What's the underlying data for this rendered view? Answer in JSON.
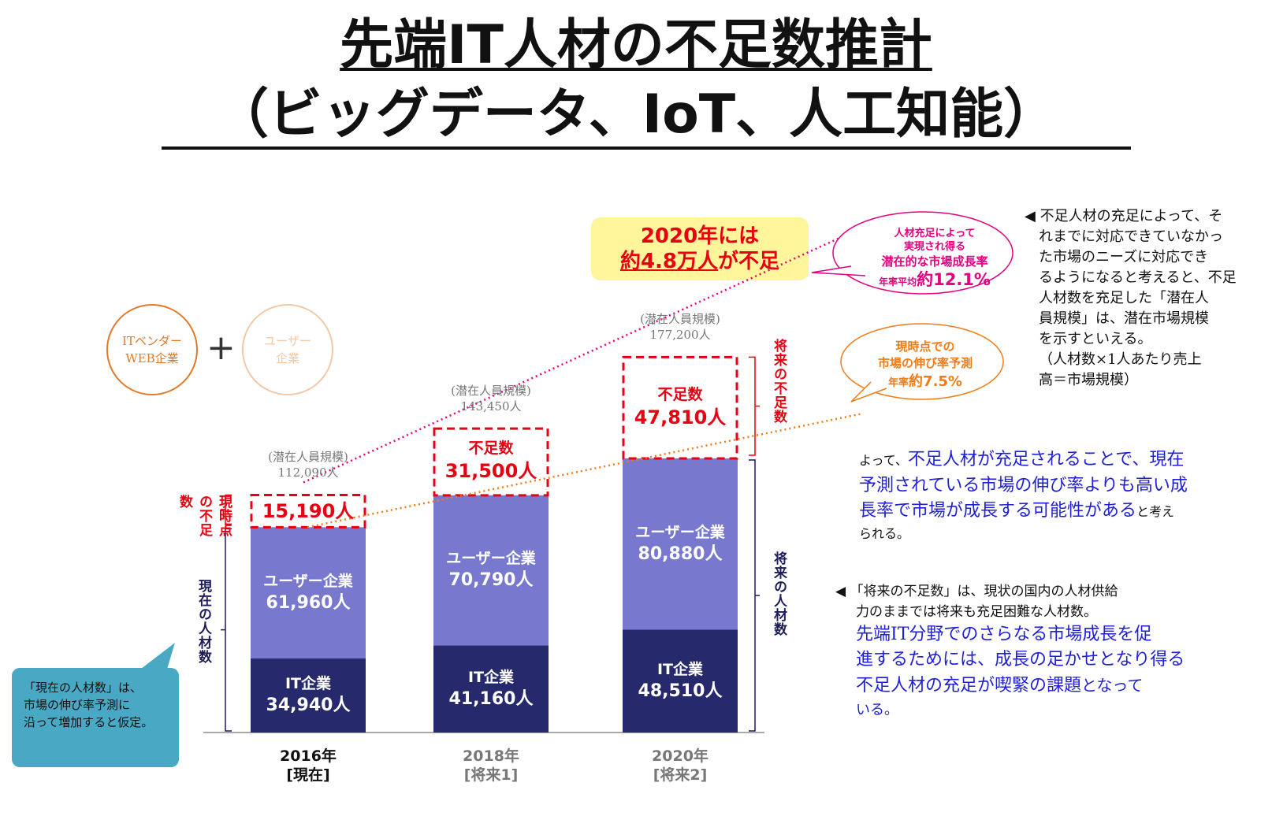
{
  "title": {
    "line1": "先端IT人材の不足数推計",
    "line2": "（ビッグデータ、IoT、人工知能）"
  },
  "callout": {
    "line1": "2020年には",
    "line2_underlined": "約4.8万人",
    "line2_rest": "が不足"
  },
  "circles": {
    "it": {
      "line1": "ITベンダー",
      "line2": "WEB企業"
    },
    "user": {
      "line1": "ユーザー",
      "line2": "企業"
    },
    "plus": "+"
  },
  "chart_data": {
    "type": "bar",
    "stacked": true,
    "categories": [
      "2016年",
      "2018年",
      "2020年"
    ],
    "category_sublabels": [
      "[現在]",
      "[将来1]",
      "[将来2]"
    ],
    "series": [
      {
        "name": "IT企業",
        "values": [
          34940,
          41160,
          48510
        ],
        "color": "#262a6c"
      },
      {
        "name": "ユーザー企業",
        "values": [
          61960,
          70790,
          80880
        ],
        "color": "#7878cf"
      },
      {
        "name": "不足数",
        "values": [
          15190,
          31500,
          47810
        ],
        "color": "#e60012"
      }
    ],
    "potential": {
      "label": "(潜在人員規模)",
      "values": [
        "112,090人",
        "143,450人",
        "177,200人"
      ]
    },
    "bar_labels": {
      "it": [
        "IT企業",
        "34,940人",
        "IT企業",
        "41,160人",
        "IT企業",
        "48,510人"
      ],
      "user": [
        "ユーザー企業",
        "61,960人",
        "ユーザー企業",
        "70,790人",
        "ユーザー企業",
        "80,880人"
      ],
      "shortage_label": "不足数",
      "shortage": [
        "15,190人",
        "31,500人",
        "47,810人"
      ]
    },
    "ylim": [
      0,
      180000
    ]
  },
  "side_labels": {
    "current_shortage": "現時点の不足数",
    "current_staff": "現在の人材数",
    "future_shortage": "将来の不足数",
    "future_staff": "将来の人材数"
  },
  "bubble_pink": {
    "line1": "人材充足によって",
    "line2": "実現され得る",
    "line3": "潜在的な市場成長率",
    "line4_small": "年率平均",
    "line4_big": "約12.1%",
    "color": "#e4007f"
  },
  "bubble_orange": {
    "line1": "現時点での",
    "line2": "市場の伸び率予測",
    "line3_small": "年率",
    "line3_big": "約7.5%",
    "color": "#f07c18"
  },
  "note_right": {
    "lines": [
      "◀ 不足人材の充足によって、そ",
      "れまでに対応できていなかっ",
      "た市場のニーズに対応でき",
      "るようになると考えると、不足",
      "人材数を充足した「潜在人",
      "員規模」は、潜在市場規模",
      "を示すといえる。",
      "（人材数×1人あたり売上",
      "高＝市場規模）"
    ]
  },
  "note_mid": {
    "prefix": "よって、",
    "b1": "不足人材が充足されることで、現在",
    "b2": "予測されている市場の伸び率よりも高い成",
    "b3": "長率で市場が成長する可能性がある",
    "suffix": "と考え",
    "end": "られる。"
  },
  "note_bottom": {
    "l1": "◀ 「将来の不足数」は、現状の国内の人材供給",
    "l2": "力のままでは将来も充足困難な人材数。",
    "b1": "先端IT分野でのさらなる市場成長を促",
    "b2": "進するためには、成長の足かせとなり得る",
    "b3a": "不足人材の充足が喫緊の課題",
    "b3b": "となって",
    "b4": "いる。"
  },
  "teal_note": {
    "l1": "「現在の人材数」は、",
    "l2": "市場の伸び率予測に",
    "l3": "沿って増加すると仮定。"
  }
}
